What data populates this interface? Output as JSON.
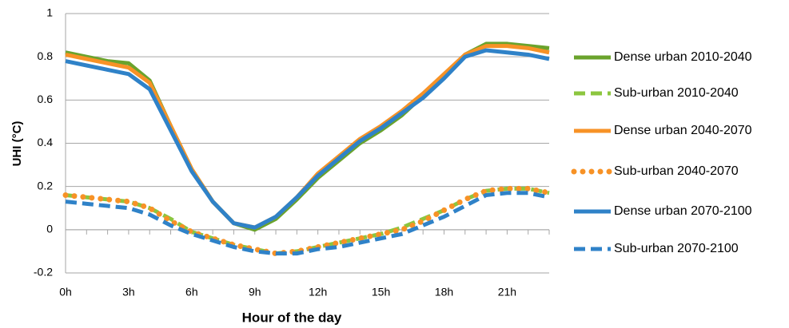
{
  "chart_data": {
    "type": "line",
    "y_label": "UHI (°C)",
    "x_label": "Hour of the day",
    "x": [
      0,
      1,
      2,
      3,
      4,
      5,
      6,
      7,
      8,
      9,
      10,
      11,
      12,
      13,
      14,
      15,
      16,
      17,
      18,
      19,
      20,
      21,
      22,
      23
    ],
    "xlim": [
      0,
      23
    ],
    "xticks": [
      {
        "value": 0,
        "label": "0h"
      },
      {
        "value": 3,
        "label": "3h"
      },
      {
        "value": 6,
        "label": "6h"
      },
      {
        "value": 9,
        "label": "9h"
      },
      {
        "value": 12,
        "label": "12h"
      },
      {
        "value": 15,
        "label": "15h"
      },
      {
        "value": 18,
        "label": "18h"
      },
      {
        "value": 21,
        "label": "21h"
      }
    ],
    "ylim": [
      -0.2,
      1
    ],
    "yticks": [
      -0.2,
      0,
      0.2,
      0.4,
      0.6,
      0.8,
      1
    ],
    "grid": true,
    "legend": "right",
    "series": [
      {
        "name": "Dense urban 2010-2040",
        "color": "#6aa32c",
        "style": "solid",
        "values": [
          0.82,
          0.8,
          0.78,
          0.77,
          0.69,
          0.48,
          0.28,
          0.13,
          0.03,
          0.0,
          0.05,
          0.14,
          0.24,
          0.32,
          0.4,
          0.46,
          0.53,
          0.62,
          0.71,
          0.81,
          0.86,
          0.86,
          0.85,
          0.84
        ]
      },
      {
        "name": "Sub-urban 2010-2040",
        "color": "#8cc63f",
        "style": "dashed",
        "values": [
          0.16,
          0.15,
          0.14,
          0.13,
          0.1,
          0.05,
          -0.01,
          -0.04,
          -0.07,
          -0.09,
          -0.11,
          -0.1,
          -0.08,
          -0.06,
          -0.04,
          -0.02,
          0.01,
          0.05,
          0.09,
          0.14,
          0.18,
          0.19,
          0.19,
          0.17
        ]
      },
      {
        "name": "Dense urban 2040-2070",
        "color": "#f79226",
        "style": "solid",
        "values": [
          0.81,
          0.79,
          0.77,
          0.75,
          0.68,
          0.48,
          0.28,
          0.13,
          0.03,
          0.01,
          0.06,
          0.15,
          0.26,
          0.34,
          0.42,
          0.48,
          0.55,
          0.63,
          0.72,
          0.81,
          0.85,
          0.85,
          0.84,
          0.82
        ]
      },
      {
        "name": "Sub-urban 2040-2070",
        "color": "#f79226",
        "style": "dotted",
        "values": [
          0.16,
          0.15,
          0.14,
          0.13,
          0.1,
          0.04,
          -0.01,
          -0.04,
          -0.07,
          -0.09,
          -0.11,
          -0.1,
          -0.08,
          -0.06,
          -0.04,
          -0.02,
          0.0,
          0.04,
          0.09,
          0.14,
          0.18,
          0.19,
          0.19,
          0.17
        ]
      },
      {
        "name": "Dense urban 2070-2100",
        "color": "#2f82c8",
        "style": "solid",
        "values": [
          0.78,
          0.76,
          0.74,
          0.72,
          0.65,
          0.46,
          0.27,
          0.13,
          0.03,
          0.01,
          0.06,
          0.15,
          0.25,
          0.33,
          0.41,
          0.47,
          0.54,
          0.61,
          0.7,
          0.8,
          0.83,
          0.82,
          0.81,
          0.79
        ]
      },
      {
        "name": "Sub-urban 2070-2100",
        "color": "#2f82c8",
        "style": "dashed",
        "values": [
          0.13,
          0.12,
          0.11,
          0.1,
          0.07,
          0.02,
          -0.02,
          -0.05,
          -0.08,
          -0.1,
          -0.11,
          -0.11,
          -0.09,
          -0.08,
          -0.06,
          -0.04,
          -0.02,
          0.02,
          0.06,
          0.11,
          0.16,
          0.17,
          0.17,
          0.15
        ]
      }
    ]
  }
}
